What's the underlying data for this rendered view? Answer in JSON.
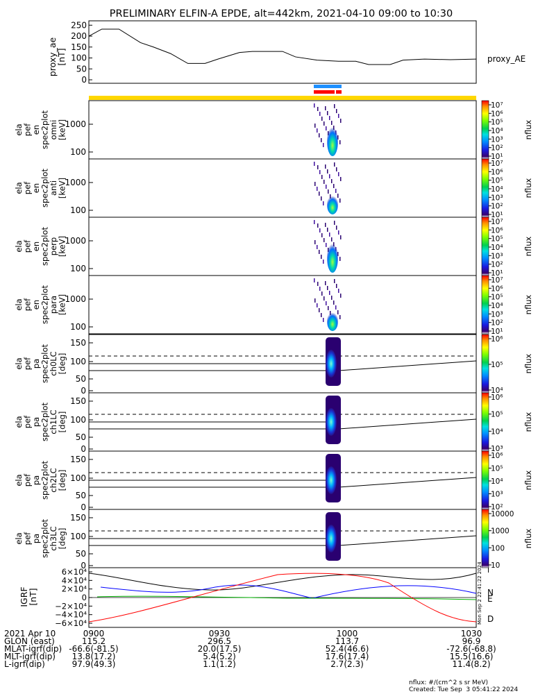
{
  "title": "PRELIMINARY ELFIN-A EPDE, alt=442km, 2021-04-10 09:00 to 10:30",
  "chart_data": [
    {
      "type": "line",
      "ylabel": [
        "proxy_ae",
        "[nT]"
      ],
      "series_label": "proxy_AE",
      "ylim": [
        0,
        270
      ],
      "yticks": [
        "250",
        "200",
        "150",
        "100",
        "50",
        "0"
      ],
      "ytick_values": [
        250,
        200,
        150,
        100,
        50,
        0
      ],
      "x_minutes": [
        0,
        3,
        7,
        12,
        15,
        19,
        23,
        27,
        30,
        35,
        38,
        45,
        48,
        53,
        58,
        62,
        65,
        70,
        73,
        78,
        84,
        90
      ],
      "values": [
        200,
        232,
        232,
        170,
        150,
        120,
        75,
        75,
        95,
        125,
        130,
        130,
        105,
        90,
        85,
        85,
        70,
        70,
        90,
        95,
        92,
        95
      ]
    },
    {
      "type": "heatmap",
      "name": "ela_pef_en_spec2plot_omni",
      "ylabel": [
        "ela",
        "pef",
        "en",
        "spec2plot",
        "omni",
        "[keV]"
      ],
      "yticks": [
        "1000",
        "100"
      ],
      "colorbar_label": "nflux",
      "colorbar_ticks": [
        "10⁷",
        "10⁶",
        "10⁵",
        "10⁴",
        "10³",
        "10²",
        "10¹"
      ]
    },
    {
      "type": "heatmap",
      "name": "ela_pef_en_spec2plot_anti",
      "ylabel": [
        "ela",
        "pef",
        "en",
        "spec2plot",
        "anti",
        "[keV]"
      ],
      "yticks": [
        "1000",
        "100"
      ],
      "colorbar_label": "nflux",
      "colorbar_ticks": [
        "10⁷",
        "10⁶",
        "10⁵",
        "10⁴",
        "10³",
        "10²",
        "10¹"
      ]
    },
    {
      "type": "heatmap",
      "name": "ela_pef_en_spec2plot_perp",
      "ylabel": [
        "ela",
        "pef",
        "en",
        "spec2plot",
        "perp",
        "[keV]"
      ],
      "yticks": [
        "1000",
        "100"
      ],
      "colorbar_label": "nflux",
      "colorbar_ticks": [
        "10⁷",
        "10⁶",
        "10⁵",
        "10⁴",
        "10³",
        "10²",
        "10¹"
      ]
    },
    {
      "type": "heatmap",
      "name": "ela_pef_en_spec2plot_para",
      "ylabel": [
        "ela",
        "pef",
        "en",
        "spec2plot",
        "para",
        "[keV]"
      ],
      "yticks": [
        "1000",
        "100"
      ],
      "colorbar_label": "nflux",
      "colorbar_ticks": [
        "10⁷",
        "10⁶",
        "10⁵",
        "10⁴",
        "10³",
        "10²",
        "10¹"
      ]
    },
    {
      "type": "heatmap",
      "name": "ela_pef_pa_spec2plot_ch0LC",
      "ylabel": [
        "ela",
        "pef",
        "pa",
        "spec2plot",
        "ch0LC",
        "[deg]"
      ],
      "yticks": [
        "150",
        "100",
        "50",
        "0"
      ],
      "colorbar_label": "nflux",
      "colorbar_ticks": [
        "10⁶",
        "10⁵",
        "10⁴"
      ]
    },
    {
      "type": "heatmap",
      "name": "ela_pef_pa_spec2plot_ch1LC",
      "ylabel": [
        "ela",
        "pef",
        "pa",
        "spec2plot",
        "ch1LC",
        "[deg]"
      ],
      "yticks": [
        "150",
        "100",
        "50",
        "0"
      ],
      "colorbar_label": "nflux",
      "colorbar_ticks": [
        "10⁶",
        "10⁵",
        "10⁴",
        "10³"
      ]
    },
    {
      "type": "heatmap",
      "name": "ela_pef_pa_spec2plot_ch2LC",
      "ylabel": [
        "ela",
        "pef",
        "pa",
        "spec2plot",
        "ch2LC",
        "[deg]"
      ],
      "yticks": [
        "150",
        "100",
        "50",
        "0"
      ],
      "colorbar_label": "nflux",
      "colorbar_ticks": [
        "10⁶",
        "10⁵",
        "10⁴",
        "10³",
        "10²"
      ]
    },
    {
      "type": "heatmap",
      "name": "ela_pef_pa_spec2plot_ch3LC",
      "ylabel": [
        "ela",
        "pef",
        "pa",
        "spec2plot",
        "ch3LC",
        "[deg]"
      ],
      "yticks": [
        "150",
        "100",
        "50",
        "0"
      ],
      "colorbar_label": "nflux",
      "colorbar_ticks": [
        "10000",
        "1000",
        "100",
        "10"
      ]
    },
    {
      "type": "line",
      "name": "IGRF",
      "ylabel": [
        "IGRF",
        "[nT]"
      ],
      "yticks": [
        "6×10⁴",
        "4×10⁴",
        "2×10⁴",
        "0",
        "−2×10⁴",
        "−4×10⁴",
        "−6×10⁴"
      ],
      "ytick_values": [
        60000,
        40000,
        20000,
        0,
        -20000,
        -40000,
        -60000
      ],
      "series": [
        {
          "name": "N",
          "color": "#0000ff"
        },
        {
          "name": "E",
          "color": "#00b000"
        },
        {
          "name": "D",
          "color": "#ff0000"
        }
      ],
      "side_text": "Mon Sep  2 22:41:22 2024"
    }
  ],
  "footer": {
    "rows": [
      [
        "2021 Apr 10",
        "0900",
        "0930",
        "1000",
        "1030"
      ],
      [
        "GLON (east)",
        "115.2",
        "296.5",
        "113.7",
        "96.9"
      ],
      [
        "MLAT-igrf(dip)",
        "-66.6(-81.5)",
        "20.0(17.5)",
        "52.4(46.6)",
        "-72.6(-68.8)"
      ],
      [
        "MLT-igrf(dip)",
        "13.8(17.2)",
        "5.4(5.2)",
        "17.6(17.4)",
        "15.5(16.6)"
      ],
      [
        "L-igrf(dip)",
        "97.9(49.3)",
        "1.1(1.2)",
        "2.7(2.3)",
        "11.4(8.2)"
      ]
    ],
    "units_note": "nflux: #/(cm^2 s sr MeV)",
    "created": "Created: Tue Sep  3 05:41:22 2024"
  },
  "colors": {
    "status_bar": "#ffd700",
    "blue_bar": "#1e90ff",
    "red_bar": "#ff0000"
  }
}
